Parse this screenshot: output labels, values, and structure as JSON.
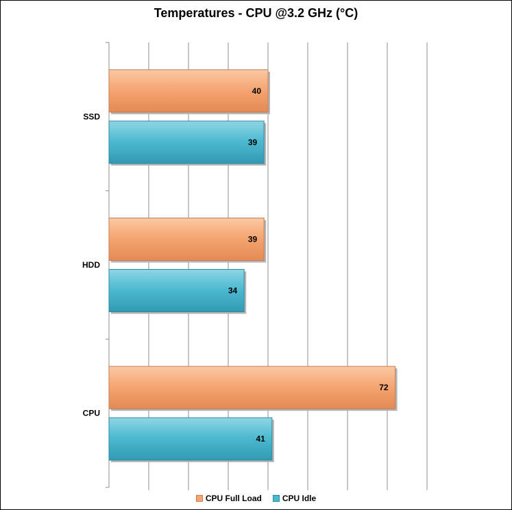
{
  "chart_data": {
    "type": "bar",
    "orientation": "horizontal",
    "title": "Temperatures - CPU @3.2 GHz (°C)",
    "categories": [
      "CPU",
      "HDD",
      "SSD"
    ],
    "series": [
      {
        "name": "CPU Full Load",
        "values": [
          72,
          39,
          40
        ],
        "color": "#f5a36f"
      },
      {
        "name": "CPU Idle",
        "values": [
          41,
          34,
          39
        ],
        "color": "#4ab8cf"
      }
    ],
    "xlim": [
      0,
      80
    ],
    "x_grid_step": 10,
    "grid": true,
    "legend_position": "bottom"
  }
}
